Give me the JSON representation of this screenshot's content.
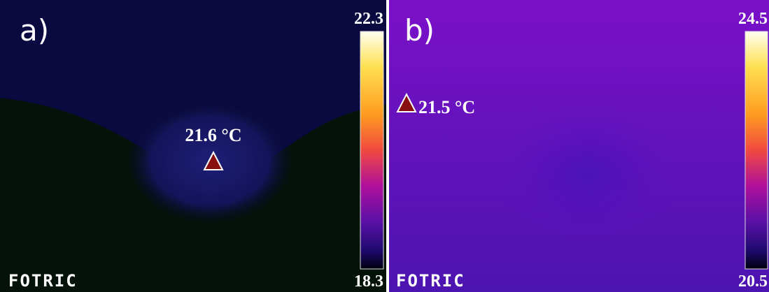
{
  "panels": [
    {
      "label": "a)",
      "scale_max": "22.3",
      "scale_min": "18.3",
      "spot": "21.6 °C",
      "logo": "FOTRIC"
    },
    {
      "label": "b)",
      "scale_max": "24.5",
      "scale_min": "20.5",
      "spot": "21.5 °C",
      "logo": "FOTRIC"
    }
  ]
}
